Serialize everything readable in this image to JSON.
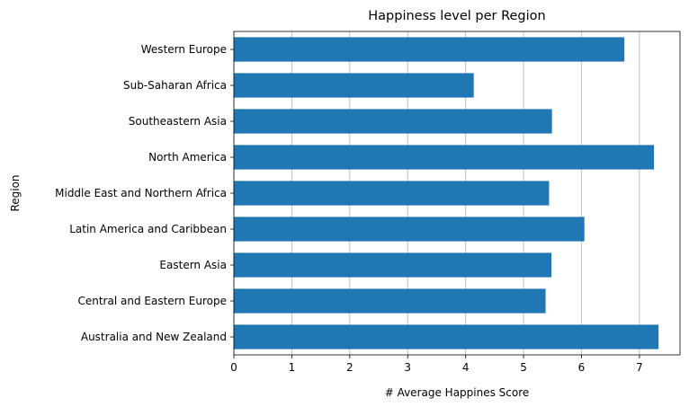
{
  "chart_data": {
    "type": "bar",
    "orientation": "horizontal",
    "title": "Happiness level per Region",
    "xlabel": "# Average Happines Score",
    "ylabel": "Region",
    "xlim": [
      0,
      7.7
    ],
    "xticks": [
      0,
      1,
      2,
      3,
      4,
      5,
      6,
      7
    ],
    "grid": "vertical",
    "bar_color": "#1f77b4",
    "categories": [
      "Australia and New Zealand",
      "Central and Eastern Europe",
      "Eastern Asia",
      "Latin America and Caribbean",
      "Middle East and Northern Africa",
      "North America",
      "Southeastern Asia",
      "Sub-Saharan Africa",
      "Western Europe"
    ],
    "values": [
      7.33,
      5.38,
      5.48,
      6.05,
      5.44,
      7.25,
      5.49,
      4.14,
      6.74
    ]
  }
}
